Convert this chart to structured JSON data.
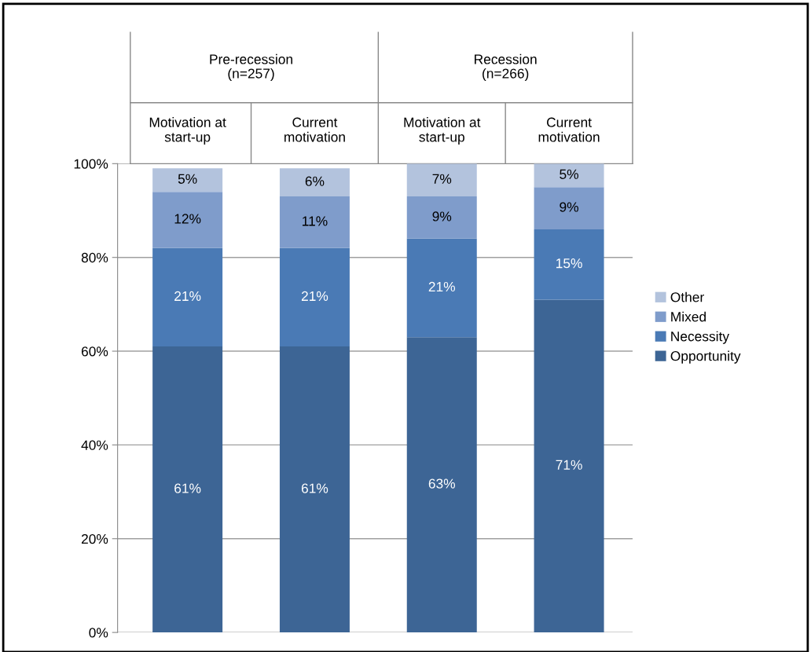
{
  "chart_data": {
    "type": "bar",
    "stacked": true,
    "categories": [
      "Motivation at start-up",
      "Current motivation",
      "Motivation at start-up",
      "Current motivation"
    ],
    "annotations": [
      "Pre-recession\n(n=257)",
      "Recession\n(n=266)"
    ],
    "series": [
      {
        "name": "Opportunity",
        "color": "#3d6595",
        "values": [
          61,
          61,
          63,
          71
        ],
        "value_labels": [
          "61%",
          "61%",
          "63%",
          "71%"
        ]
      },
      {
        "name": "Necessity",
        "color": "#4a7ab5",
        "values": [
          21,
          21,
          21,
          15
        ],
        "value_labels": [
          "21%",
          "21%",
          "21%",
          "15%"
        ]
      },
      {
        "name": "Mixed",
        "color": "#7f9ccb",
        "values": [
          12,
          11,
          9,
          9
        ],
        "value_labels": [
          "12%",
          "11%",
          "9%",
          "9%"
        ]
      },
      {
        "name": "Other",
        "color": "#b3c3dd",
        "values": [
          5,
          6,
          7,
          5
        ],
        "value_labels": [
          "5%",
          "6%",
          "7%",
          "5%"
        ]
      }
    ],
    "ylim": [
      0,
      100
    ],
    "yticks": [
      {
        "value": 0,
        "label": "0%"
      },
      {
        "value": 20,
        "label": "20%"
      },
      {
        "value": 40,
        "label": "40%"
      },
      {
        "value": 60,
        "label": "60%"
      },
      {
        "value": 80,
        "label": "80%"
      },
      {
        "value": 100,
        "label": "100%"
      }
    ],
    "grid": "y",
    "legend": "right"
  }
}
